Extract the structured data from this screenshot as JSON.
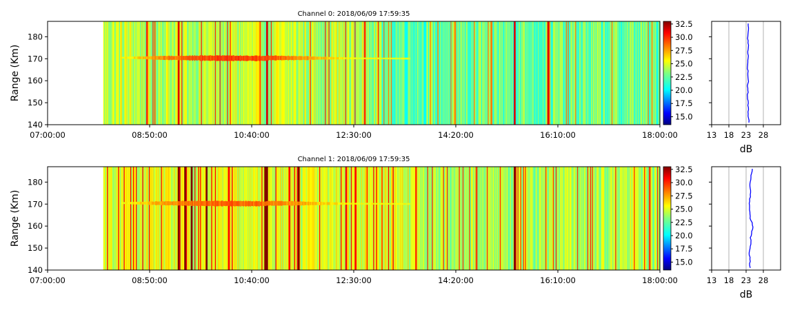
{
  "chart_data": [
    {
      "type": "heatmap",
      "title": "Channel 0: 2018/06/09 17:59:35",
      "ylabel": "Range (Km)",
      "x_ticks": [
        "07:00:00",
        "08:50:00",
        "10:40:00",
        "12:30:00",
        "14:20:00",
        "16:10:00",
        "18:00:00"
      ],
      "x_range_minutes": [
        0,
        660
      ],
      "y_ticks": [
        140,
        150,
        160,
        170,
        180
      ],
      "ylim": [
        140,
        187
      ],
      "data_start_minutes": 60,
      "colorbar": {
        "ticks": [
          "15.0",
          "17.5",
          "20.0",
          "22.5",
          "25.0",
          "27.5",
          "30.0",
          "32.5"
        ],
        "range": [
          13.5,
          33.0
        ],
        "colormap": "jet"
      },
      "echo_layer": {
        "range_km": 170,
        "start_minutes": 80,
        "end_minutes": 390,
        "peak_db": 30.5
      },
      "strong_columns_minutes": [
        141,
        236,
        503,
        539
      ],
      "profile": {
        "xlabel": "dB",
        "x_ticks": [
          13,
          18,
          23,
          28
        ],
        "xlim": [
          13,
          33
        ],
        "values": [
          23.8,
          23.7,
          23.6,
          23.7,
          23.5,
          23.6,
          23.4,
          23.6,
          23.5,
          23.5,
          23.6,
          23.5,
          23.6,
          23.4,
          23.5,
          23.6,
          23.5,
          23.6,
          23.7,
          23.6,
          23.5,
          23.6,
          23.7,
          23.6
        ]
      }
    },
    {
      "type": "heatmap",
      "title": "Channel 1: 2018/06/09 17:59:35",
      "ylabel": "Range (Km)",
      "x_ticks": [
        "07:00:00",
        "08:50:00",
        "10:40:00",
        "12:30:00",
        "14:20:00",
        "16:10:00",
        "18:00:00"
      ],
      "x_range_minutes": [
        0,
        660
      ],
      "y_ticks": [
        140,
        150,
        160,
        170,
        180
      ],
      "ylim": [
        140,
        187
      ],
      "data_start_minutes": 60,
      "colorbar": {
        "ticks": [
          "15.0",
          "17.5",
          "20.0",
          "22.5",
          "25.0",
          "27.5",
          "30.0",
          "32.5"
        ],
        "range": [
          13.5,
          33.0
        ],
        "colormap": "jet"
      },
      "echo_layer": {
        "range_km": 170,
        "start_minutes": 80,
        "end_minutes": 390,
        "peak_db": 29.5
      },
      "strong_columns_minutes": [
        141,
        148,
        155,
        171,
        234,
        236,
        270,
        503
      ],
      "profile": {
        "xlabel": "dB",
        "x_ticks": [
          13,
          18,
          23,
          28
        ],
        "xlim": [
          13,
          33
        ],
        "values": [
          24.2,
          24.0,
          24.1,
          23.9,
          24.0,
          24.2,
          24.4,
          24.2,
          24.6,
          24.9,
          24.8,
          24.4,
          24.2,
          24.1,
          24.0,
          23.9,
          24.0,
          24.2,
          24.3,
          24.1,
          24.2,
          24.4,
          24.6,
          24.8
        ]
      }
    }
  ]
}
